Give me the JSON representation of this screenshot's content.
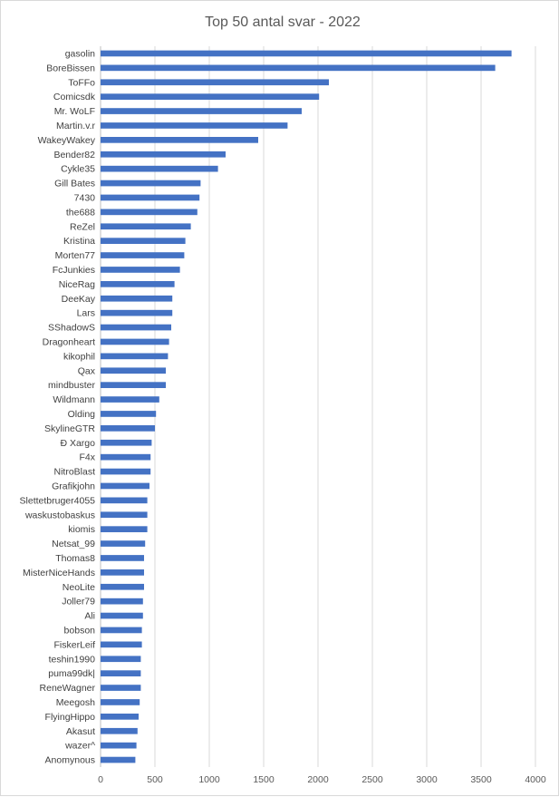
{
  "chart_data": {
    "type": "bar",
    "orientation": "horizontal",
    "title": "Top 50 antal svar - 2022",
    "xlabel": "",
    "ylabel": "",
    "xlim": [
      0,
      4000
    ],
    "x_ticks": [
      0,
      500,
      1000,
      1500,
      2000,
      2500,
      3000,
      3500,
      4000
    ],
    "grid": true,
    "legend": "none",
    "bar_color": "#4472c4",
    "categories": [
      "gasolin",
      "BoreBissen",
      "ToFFo",
      "Comicsdk",
      "Mr. WoLF",
      "Martin.v.r",
      "WakeyWakey",
      "Bender82",
      "Cykle35",
      "Gill Bates",
      "7430",
      "the688",
      "ReZel",
      "Kristina",
      "Morten77",
      "FcJunkies",
      "NiceRag",
      "DeeKay",
      "Lars",
      "SShadowS",
      "Dragonheart",
      "kikophil",
      "Qax",
      "mindbuster",
      "Wildmann",
      "Olding",
      "SkylineGTR",
      "Ð Xargo",
      "F4x",
      "NitroBlast",
      "Grafikjohn",
      "Slettetbruger4055",
      "waskustobaskus",
      "kiomis",
      "Netsat_99",
      "Thomas8",
      "MisterNiceHands",
      "NeoLite",
      "Joller79",
      "Ali",
      "bobson",
      "FiskerLeif",
      "teshin1990",
      "puma99dk|",
      "ReneWagner",
      "Meegosh",
      "FlyingHippo",
      "Akasut",
      "wazer^",
      "Anomynous"
    ],
    "values": [
      3780,
      3630,
      2100,
      2010,
      1850,
      1720,
      1450,
      1150,
      1080,
      920,
      910,
      890,
      830,
      780,
      770,
      730,
      680,
      660,
      660,
      650,
      630,
      620,
      600,
      600,
      540,
      510,
      500,
      470,
      460,
      460,
      450,
      430,
      430,
      430,
      410,
      400,
      400,
      400,
      390,
      390,
      380,
      380,
      370,
      370,
      370,
      360,
      350,
      340,
      330,
      320
    ]
  }
}
